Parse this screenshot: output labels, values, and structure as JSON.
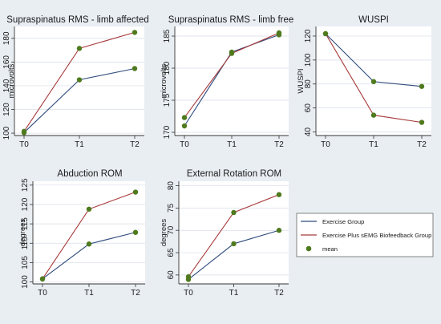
{
  "colors": {
    "background": "#e9eef3",
    "plot_bg": "#ffffff",
    "group1": "#2f4b7c",
    "group2": "#a83a3a",
    "mean_marker": "#4f7a1e",
    "axis": "#333333",
    "grid": "#d7dee6"
  },
  "legend": {
    "items": [
      {
        "label": "Exercise Group",
        "kind": "line",
        "color": "#2f4b7c"
      },
      {
        "label": "Exercise Plus sEMG Biofeedback Group",
        "kind": "line",
        "color": "#a83a3a"
      },
      {
        "label": "mean",
        "kind": "marker",
        "color": "#4f7a1e"
      }
    ]
  },
  "chart_data": [
    {
      "type": "line",
      "title": "Supraspinatus RMS - limb affected",
      "ylabel": "microvolts",
      "categories": [
        "T0",
        "T1",
        "T2"
      ],
      "ylim": [
        98,
        190
      ],
      "yticks": [
        100,
        120,
        140,
        160,
        180
      ],
      "series": [
        {
          "values": [
            100.5,
            145,
            154.5
          ]
        },
        {
          "values": [
            101.5,
            171.5,
            185
          ]
        }
      ]
    },
    {
      "type": "line",
      "title": "Supraspinatus RMS - limb free",
      "ylabel": "microvolts",
      "categories": [
        "T0",
        "T1",
        "T2"
      ],
      "ylim": [
        169.5,
        186.5
      ],
      "yticks": [
        170,
        175,
        180,
        185
      ],
      "series": [
        {
          "values": [
            171,
            182.5,
            185.2
          ]
        },
        {
          "values": [
            172.3,
            182.3,
            185.5
          ]
        }
      ]
    },
    {
      "type": "line",
      "title": "WUSPI",
      "ylabel": "WUSPI",
      "categories": [
        "T0",
        "T1",
        "T2"
      ],
      "ylim": [
        37,
        128
      ],
      "yticks": [
        40,
        60,
        80,
        100,
        120
      ],
      "series": [
        {
          "values": [
            122,
            82,
            78
          ]
        },
        {
          "values": [
            122,
            54,
            48
          ]
        }
      ]
    },
    {
      "type": "line",
      "title": "Abduction ROM",
      "ylabel": "degrees",
      "categories": [
        "T0",
        "T1",
        "T2"
      ],
      "ylim": [
        99.5,
        126
      ],
      "yticks": [
        100,
        105,
        110,
        115,
        120,
        125
      ],
      "series": [
        {
          "values": [
            100.8,
            109.8,
            112.8
          ]
        },
        {
          "values": [
            100.8,
            118.8,
            123.2
          ]
        }
      ]
    },
    {
      "type": "line",
      "title": "External Rotation ROM",
      "ylabel": "degrees",
      "categories": [
        "T0",
        "T1",
        "T2"
      ],
      "ylim": [
        58,
        81
      ],
      "yticks": [
        60,
        65,
        70,
        75,
        80
      ],
      "series": [
        {
          "values": [
            59,
            67,
            70
          ]
        },
        {
          "values": [
            59.6,
            74,
            78
          ]
        }
      ]
    }
  ]
}
